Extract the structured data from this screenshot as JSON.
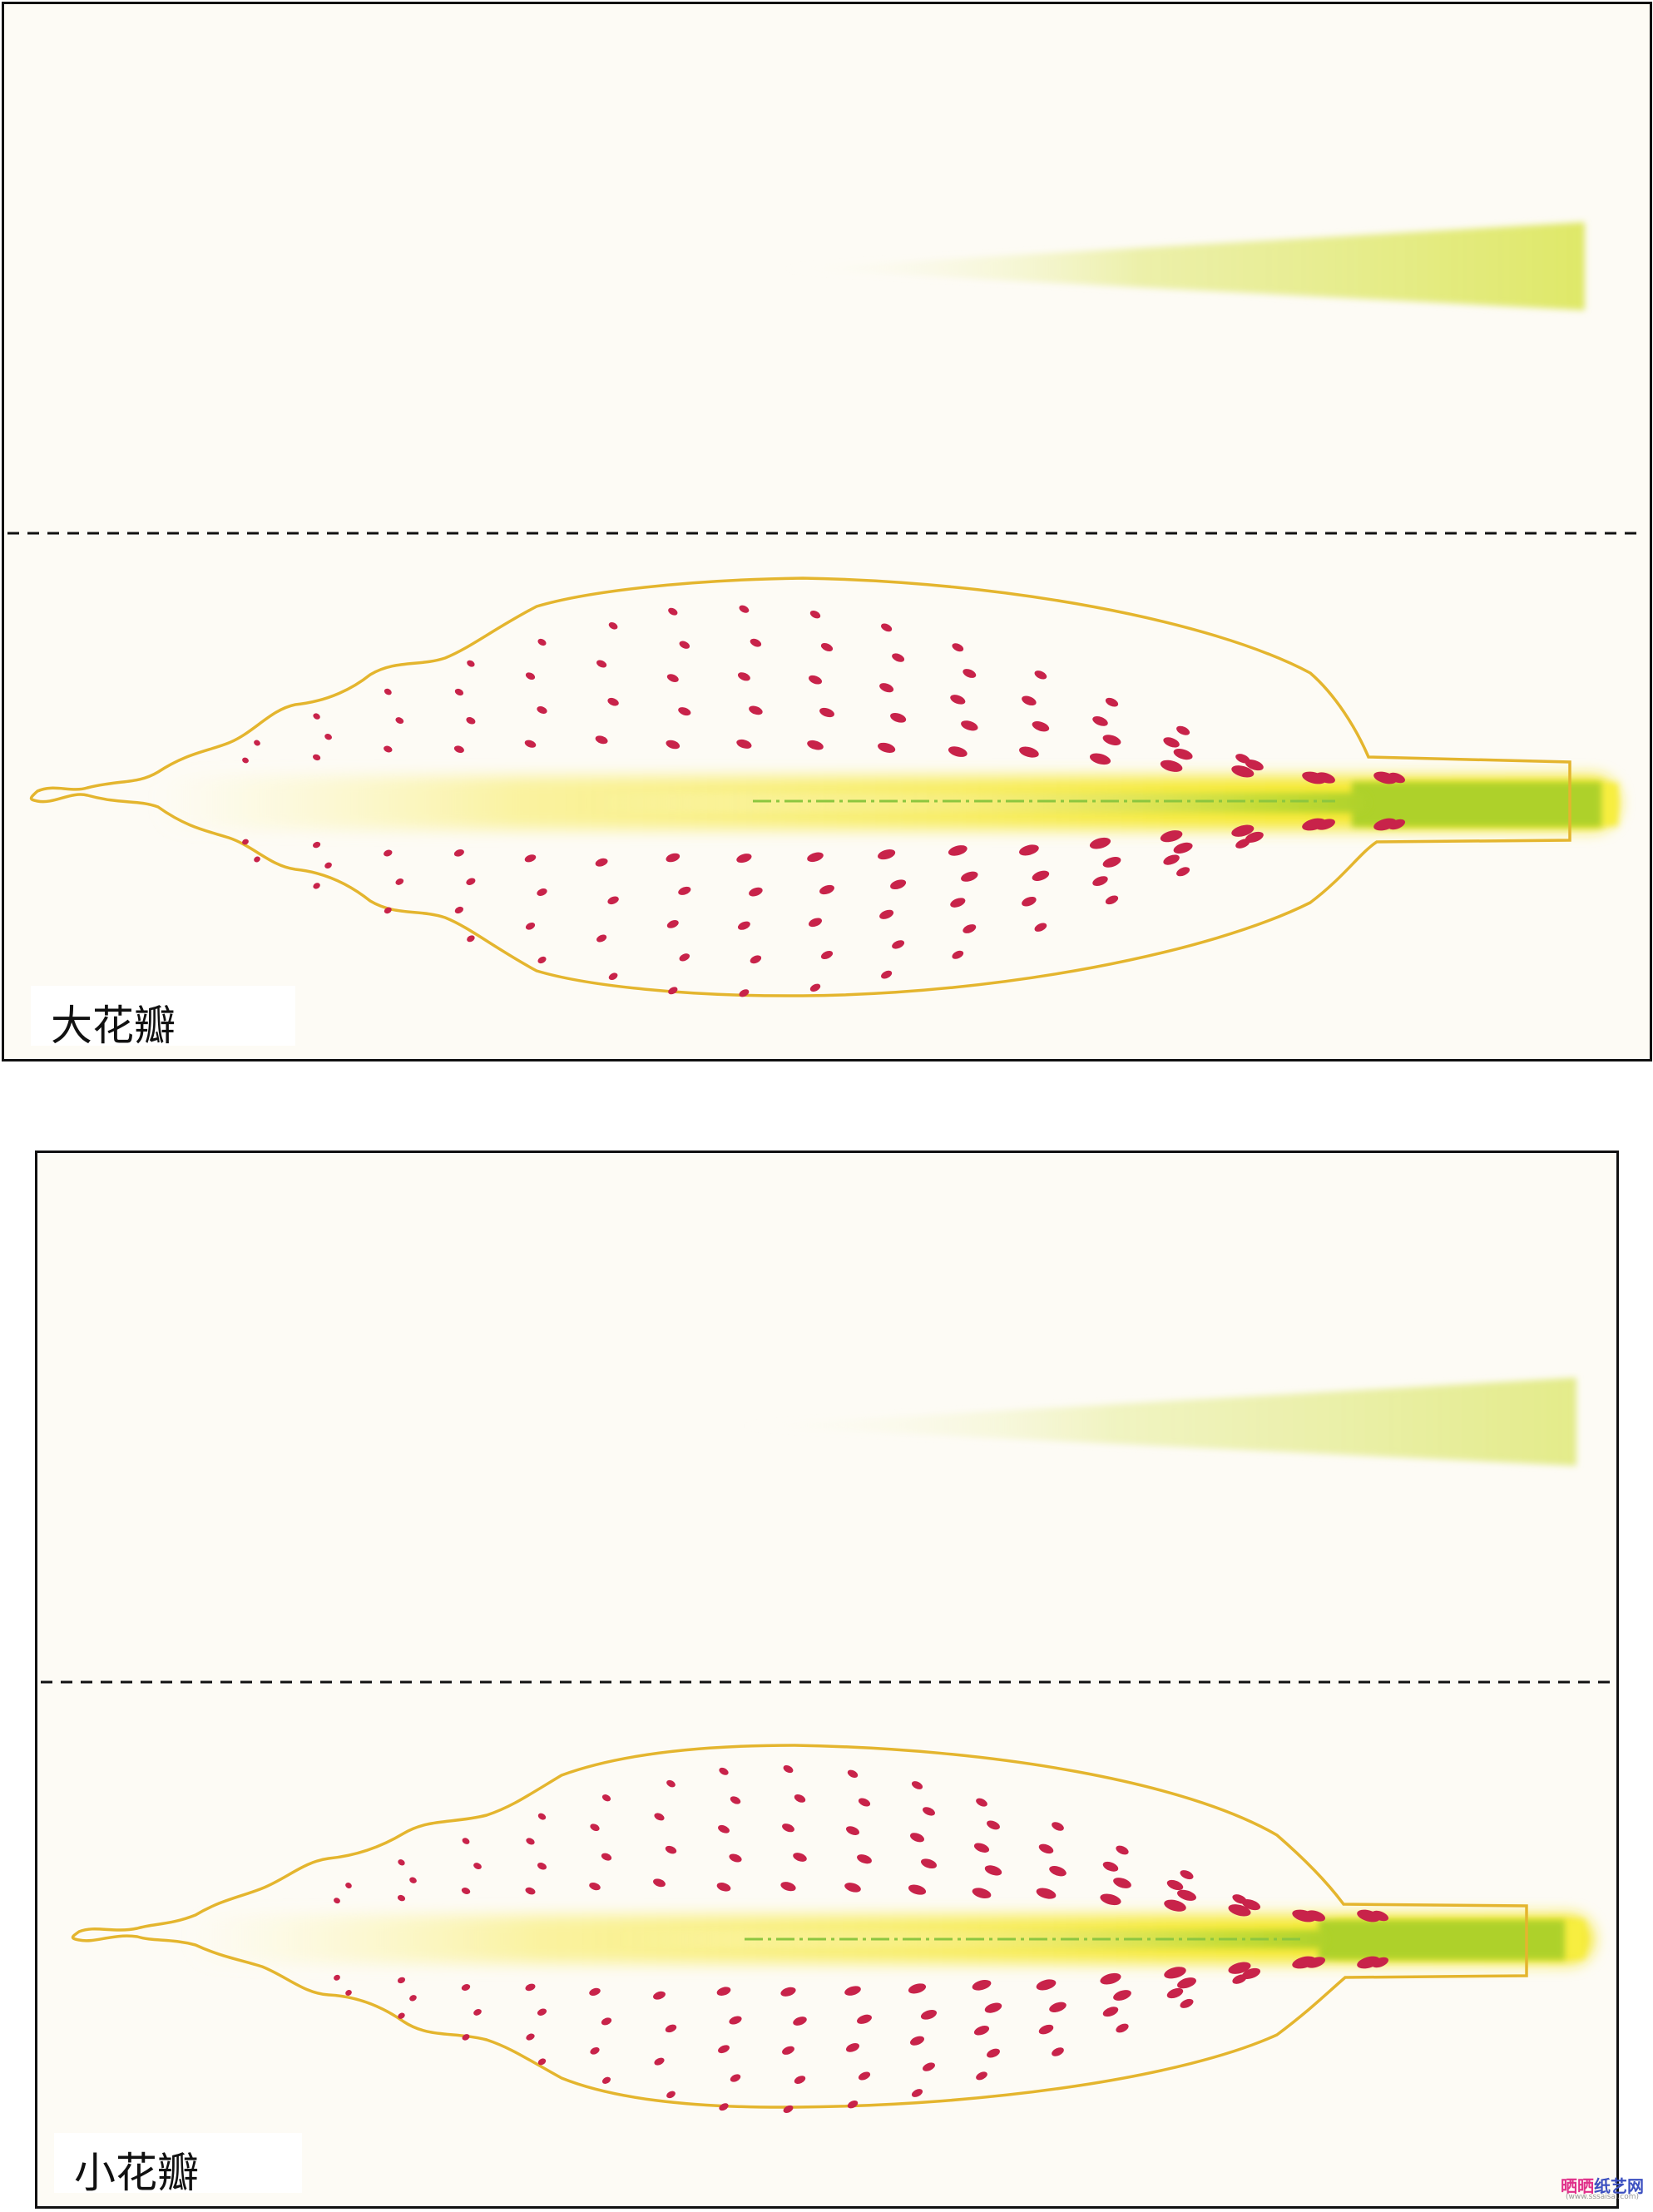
{
  "panels": [
    {
      "id": "large",
      "label": "大花瓣"
    },
    {
      "id": "small",
      "label": "小花瓣"
    }
  ],
  "watermark": {
    "main_a": "晒晒",
    "main_b": "纸艺网",
    "sub": "(www.sssaisai.com)"
  },
  "colors": {
    "paper": "#fdfbf5",
    "outline": "#e4b52e",
    "spot": "#c8234a",
    "vein_green": "#aed12a",
    "vein_yellow": "#f7ee3f",
    "stem_top": "#dfe868",
    "center_line": "#8cc63f",
    "fold_line": "#111111"
  },
  "icons": {
    "spot": "petal-spot",
    "fold": "dashed-fold-line",
    "vein": "center-dash-dot-line"
  }
}
